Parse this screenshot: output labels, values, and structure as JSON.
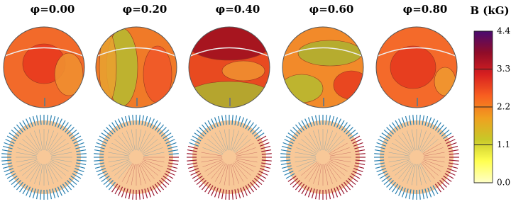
{
  "chart_data": {
    "type": "surface-map",
    "panels": [
      "φ=0.00",
      "φ=0.20",
      "φ=0.40",
      "φ=0.60",
      "φ=0.80"
    ],
    "colorbar": {
      "label": "B (kG)",
      "ylim": [
        0,
        4.4
      ],
      "yticks": [
        {
          "value": 0,
          "label": "0.0"
        },
        1.1,
        2.2,
        3.3,
        4.4
      ],
      "colormap": [
        "#ffffc8",
        "#ffff50",
        "#c8c828",
        "#f0a020",
        "#f86020",
        "#d82020",
        "#900c28",
        "#4a0a70"
      ]
    }
  }
}
